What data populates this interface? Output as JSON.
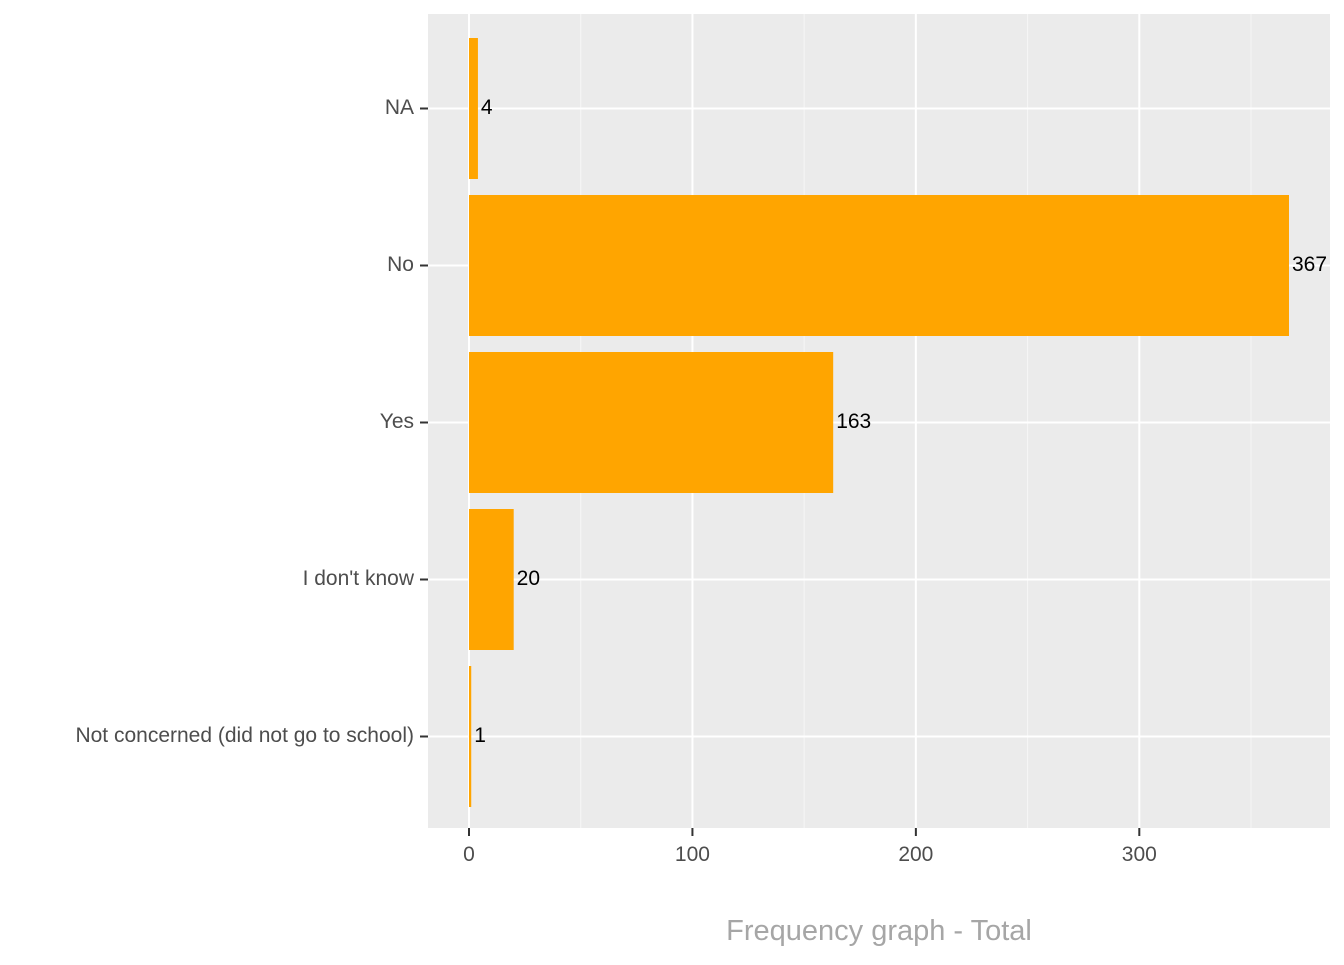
{
  "chart_data": {
    "type": "bar",
    "orientation": "horizontal",
    "categories": [
      "NA",
      "No",
      "Yes",
      "I don't know",
      "Not concerned (did not go to school)"
    ],
    "values": [
      4,
      367,
      163,
      20,
      1
    ],
    "title": "",
    "xlabel": "Frequency graph - Total",
    "ylabel": "",
    "xlim": [
      -18.35,
      385.35
    ],
    "x_ticks": [
      0,
      100,
      200,
      300
    ],
    "x_tick_labels": [
      "0",
      "100",
      "200",
      "300"
    ],
    "grid": true,
    "legend": "none",
    "colors": {
      "bar": "#FFA500",
      "panel_background": "#EBEBEB",
      "grid": "#FFFFFF",
      "axis_text": "#4D4D4D",
      "axis_title": "#A6A6A6",
      "data_label": "#000000"
    }
  }
}
